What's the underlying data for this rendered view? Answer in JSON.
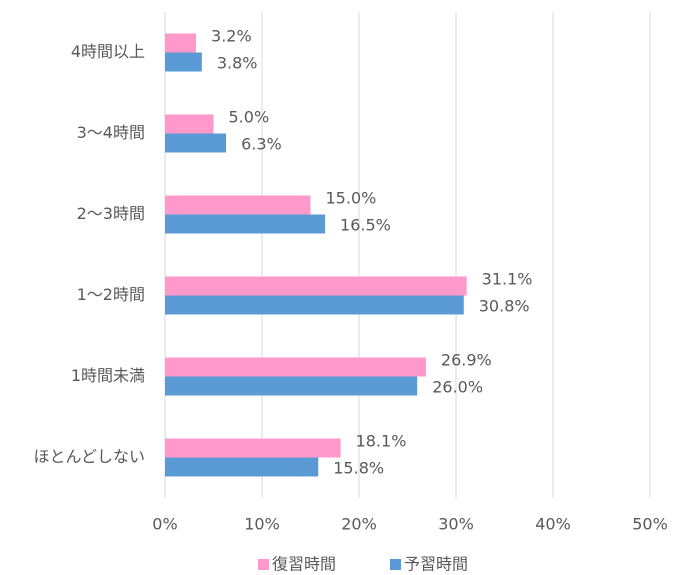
{
  "chart_data": {
    "type": "barh",
    "categories": [
      "4時間以上",
      "3〜4時間",
      "2〜3時間",
      "1〜2時間",
      "1時間未満",
      "ほとんどしない"
    ],
    "series": [
      {
        "name": "復習時間",
        "color": "#ff99cc",
        "values": [
          3.2,
          5.0,
          15.0,
          31.1,
          26.9,
          18.1
        ],
        "value_labels": [
          "3.2%",
          "5.0%",
          "15.0%",
          "31.1%",
          "26.9%",
          "18.1%"
        ]
      },
      {
        "name": "予習時間",
        "color": "#5b9bd5",
        "values": [
          3.8,
          6.3,
          16.5,
          30.8,
          26.0,
          15.8
        ],
        "value_labels": [
          "3.8%",
          "6.3%",
          "16.5%",
          "30.8%",
          "26.0%",
          "15.8%"
        ]
      }
    ],
    "xlim": [
      0,
      50
    ],
    "xticks": [
      {
        "value": 0,
        "label": "0%"
      },
      {
        "value": 10,
        "label": "10%"
      },
      {
        "value": 20,
        "label": "20%"
      },
      {
        "value": 30,
        "label": "30%"
      },
      {
        "value": 40,
        "label": "40%"
      },
      {
        "value": 50,
        "label": "50%"
      }
    ],
    "grid": true,
    "legend": "bottom"
  }
}
